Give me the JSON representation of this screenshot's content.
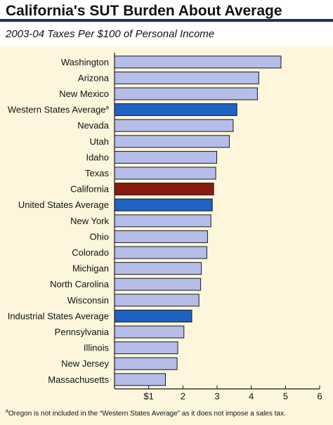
{
  "header": {
    "title": "California's SUT Burden About Average",
    "subtitle": "2003-04 Taxes Per $100 of Personal Income"
  },
  "footnote": {
    "marker": "a",
    "text": "Oregon is not included in the “Western States Average” as it does not impose a sales tax."
  },
  "colors": {
    "background": "#fdf6dd",
    "header_rule": "#1b2f63",
    "state_bar": "#b5bde8",
    "average_bar": "#1e63c4",
    "california_bar": "#8b1a10"
  },
  "chart_data": {
    "type": "bar",
    "orientation": "horizontal",
    "title": "California's SUT Burden About Average",
    "subtitle": "2003-04 Taxes Per $100 of Personal Income",
    "xlim": [
      0,
      6
    ],
    "x_ticks": [
      1,
      2,
      3,
      4,
      5,
      6
    ],
    "x_tick_labels": [
      "$1",
      "2",
      "3",
      "4",
      "5",
      "6"
    ],
    "grid": false,
    "categories": [
      "Washington",
      "Arizona",
      "New Mexico",
      "Western States Average",
      "Nevada",
      "Utah",
      "Idaho",
      "Texas",
      "California",
      "United States Average",
      "New York",
      "Ohio",
      "Colorado",
      "Michigan",
      "North Carolina",
      "Wisconsin",
      "Industrial States Average",
      "Pennsylvania",
      "Illinois",
      "New Jersey",
      "Massachusetts"
    ],
    "category_superscripts": [
      "",
      "",
      "",
      "a",
      "",
      "",
      "",
      "",
      "",
      "",
      "",
      "",
      "",
      "",
      "",
      "",
      "",
      "",
      "",
      "",
      ""
    ],
    "values": [
      4.87,
      4.22,
      4.18,
      3.58,
      3.47,
      3.36,
      2.99,
      2.96,
      2.9,
      2.86,
      2.82,
      2.72,
      2.7,
      2.54,
      2.52,
      2.47,
      2.26,
      2.03,
      1.85,
      1.83,
      1.49
    ],
    "bar_kind": [
      "state",
      "state",
      "state",
      "average",
      "state",
      "state",
      "state",
      "state",
      "california",
      "average",
      "state",
      "state",
      "state",
      "state",
      "state",
      "state",
      "average",
      "state",
      "state",
      "state",
      "state"
    ]
  }
}
